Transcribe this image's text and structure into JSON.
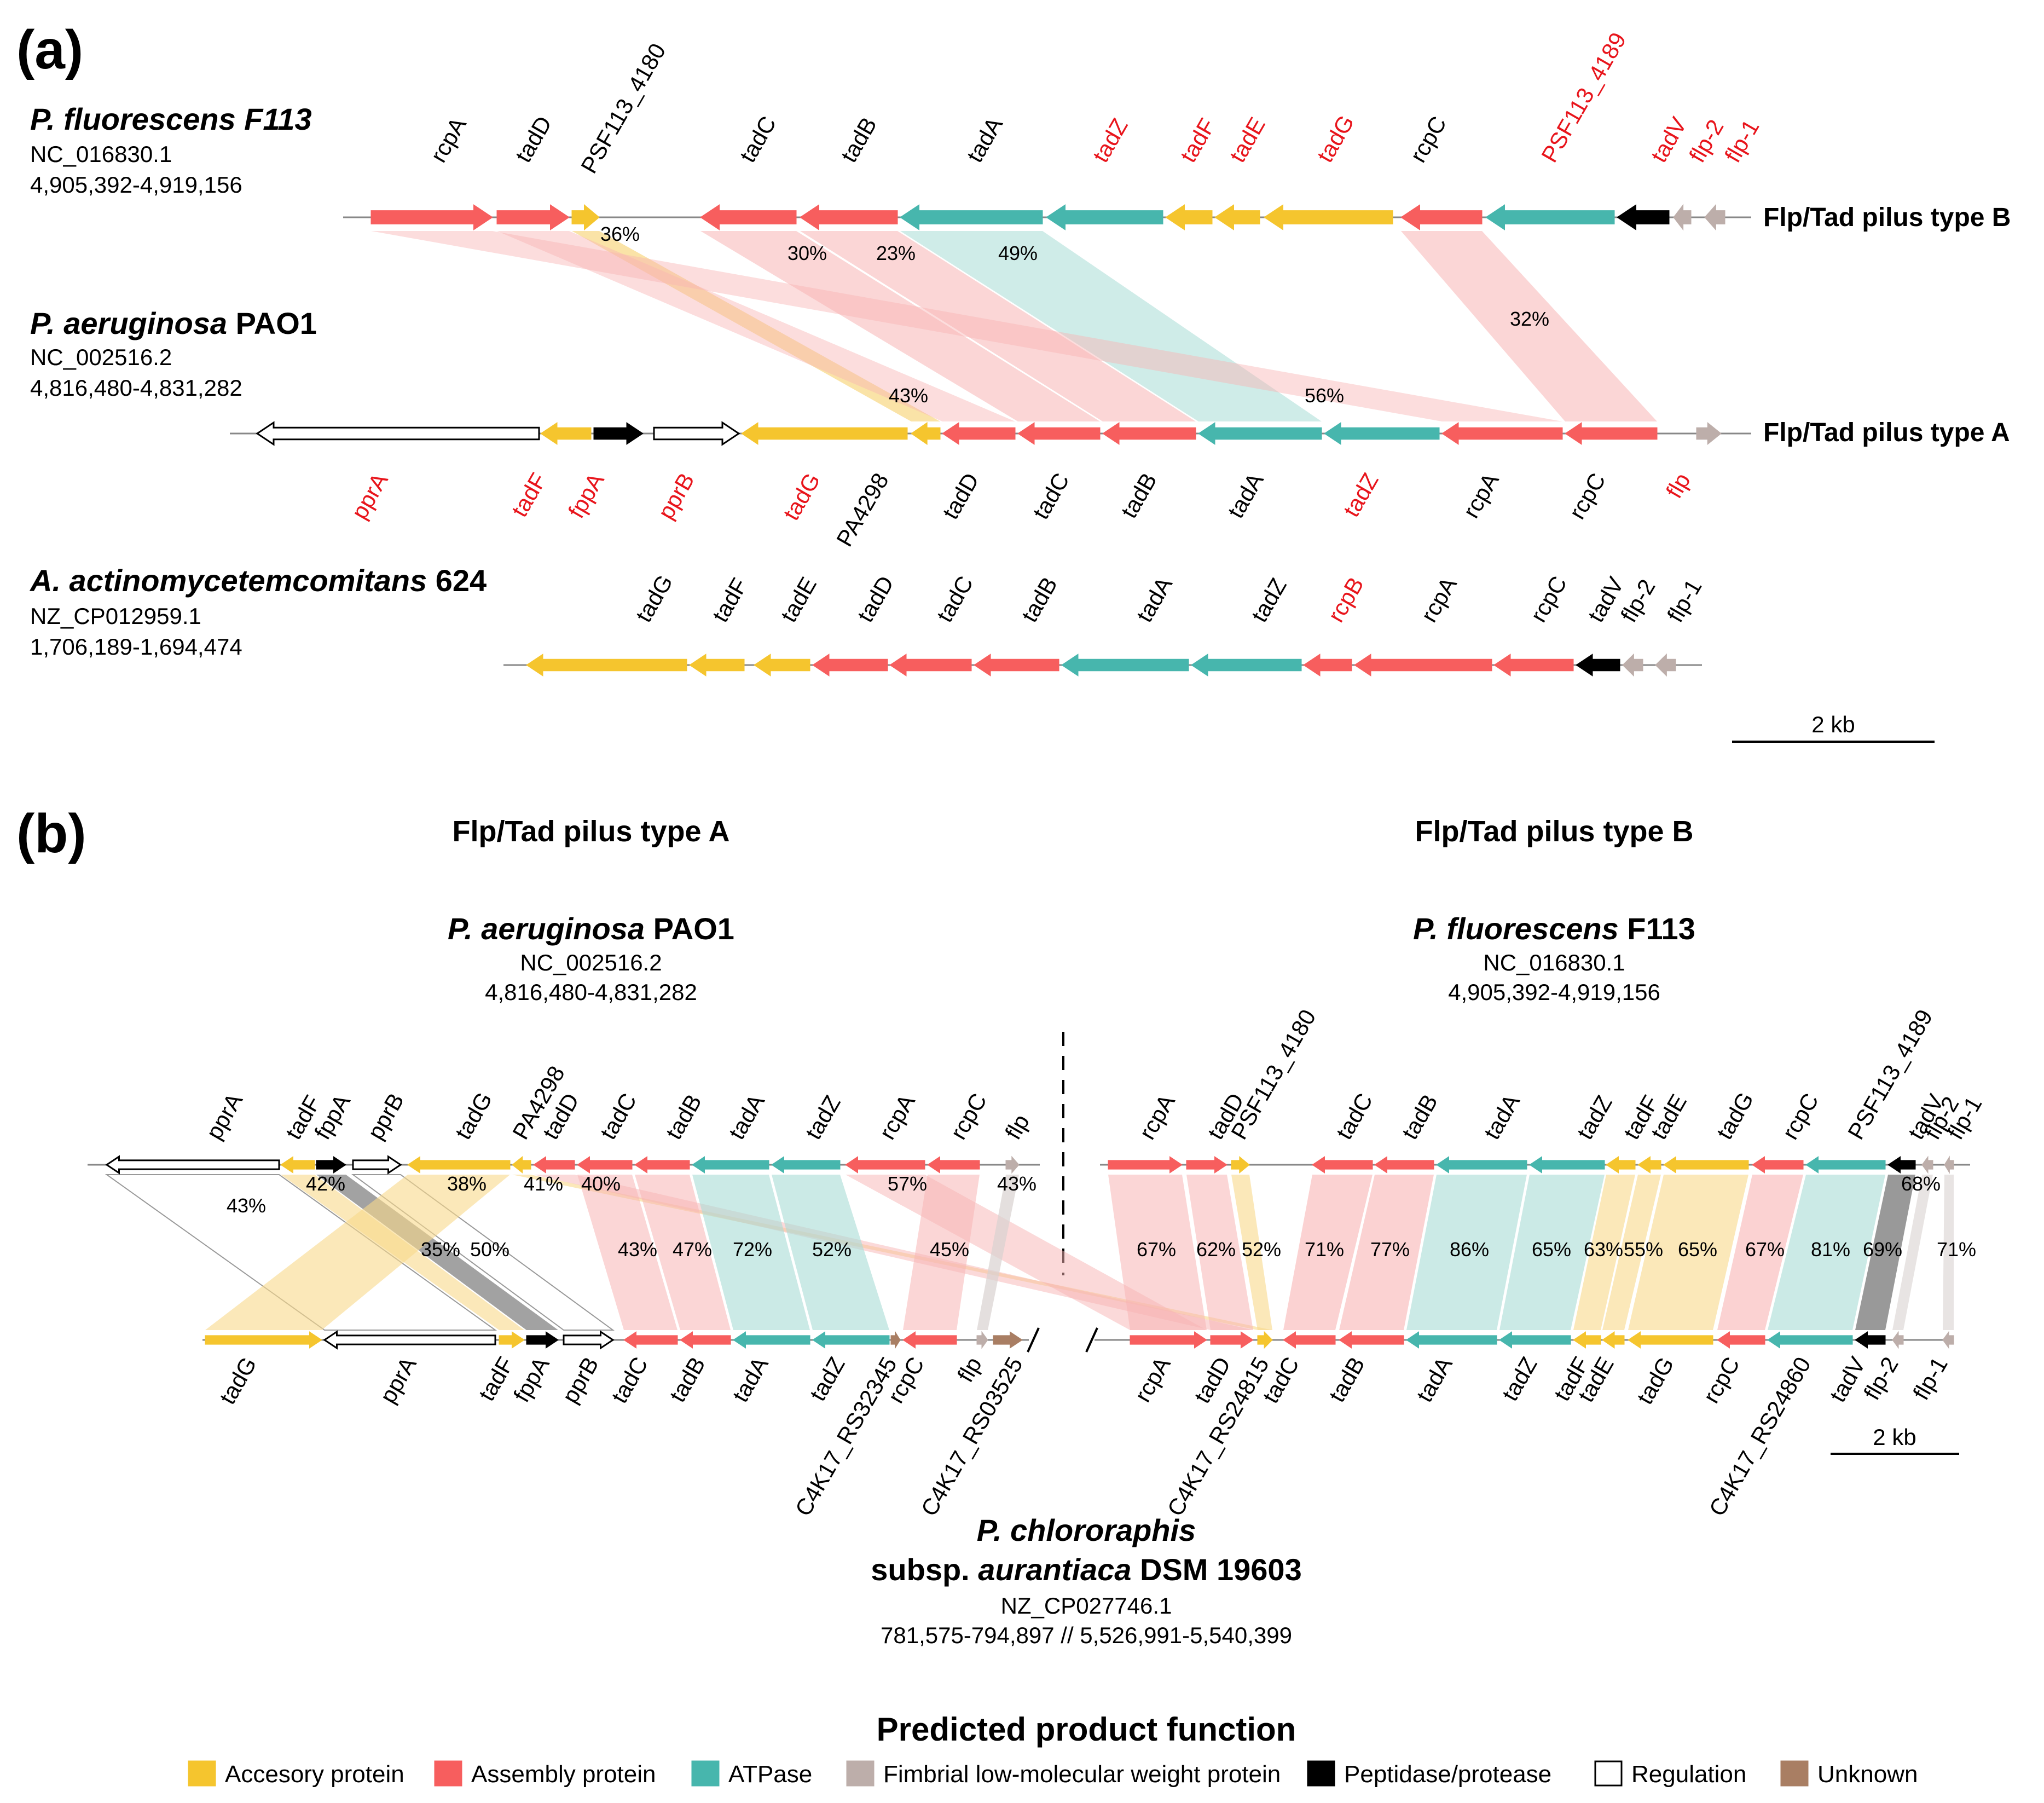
{
  "colors": {
    "accessory": "#F5C52E",
    "assembly": "#F75E5E",
    "atpase": "#47B6AD",
    "fimbrial": "#BDAEAA",
    "peptidase": "#000000",
    "regulation": "#FFFFFF",
    "unknown": "#A97E63",
    "label_black": "#000000",
    "label_red": "#E8141B"
  },
  "panel_a": {
    "label": "(a)",
    "scale_label": "2 kb",
    "genomes": [
      {
        "key": "fluo",
        "name_italic": "P. fluorescens F113",
        "name_rest": "",
        "accession": "NC_016830.1",
        "coords": "4,905,392-4,919,156",
        "type_label": "Flp/Tad pilus type B",
        "genes": [
          {
            "name": "rcpA",
            "func": "assembly",
            "dir": "R",
            "red": false
          },
          {
            "name": "tadD",
            "func": "assembly",
            "dir": "R",
            "red": false
          },
          {
            "name": "PSF113_4180",
            "func": "accessory",
            "dir": "R",
            "red": false
          },
          {
            "name": "tadC",
            "func": "assembly",
            "dir": "L",
            "red": false
          },
          {
            "name": "tadB",
            "func": "assembly",
            "dir": "L",
            "red": false
          },
          {
            "name": "tadA",
            "func": "atpase",
            "dir": "L",
            "red": false
          },
          {
            "name": "tadZ",
            "func": "atpase",
            "dir": "L",
            "red": true
          },
          {
            "name": "tadF",
            "func": "accessory",
            "dir": "L",
            "red": true
          },
          {
            "name": "tadE",
            "func": "accessory",
            "dir": "L",
            "red": true
          },
          {
            "name": "tadG",
            "func": "accessory",
            "dir": "L",
            "red": true
          },
          {
            "name": "rcpC",
            "func": "assembly",
            "dir": "L",
            "red": false
          },
          {
            "name": "PSF113_4189",
            "func": "atpase",
            "dir": "L",
            "red": true
          },
          {
            "name": "tadV",
            "func": "peptidase",
            "dir": "L",
            "red": true
          },
          {
            "name": "flp-2",
            "func": "fimbrial",
            "dir": "L",
            "red": true
          },
          {
            "name": "flp-1",
            "func": "fimbrial",
            "dir": "L",
            "red": true
          }
        ]
      },
      {
        "key": "aeru",
        "name_italic": "P. aeruginosa",
        "name_rest": " PAO1",
        "accession": "NC_002516.2",
        "coords": "4,816,480-4,831,282",
        "type_label": "Flp/Tad pilus type A",
        "genes": [
          {
            "name": "pprA",
            "func": "regulation",
            "dir": "L",
            "red": true
          },
          {
            "name": "tadF",
            "func": "accessory",
            "dir": "L",
            "red": true
          },
          {
            "name": "fppA",
            "func": "peptidase",
            "dir": "R",
            "red": true
          },
          {
            "name": "pprB",
            "func": "regulation",
            "dir": "R",
            "red": true
          },
          {
            "name": "tadG",
            "func": "accessory",
            "dir": "L",
            "red": true
          },
          {
            "name": "PA4298",
            "func": "accessory",
            "dir": "L",
            "red": false
          },
          {
            "name": "tadD",
            "func": "assembly",
            "dir": "L",
            "red": false
          },
          {
            "name": "tadC",
            "func": "assembly",
            "dir": "L",
            "red": false
          },
          {
            "name": "tadB",
            "func": "assembly",
            "dir": "L",
            "red": false
          },
          {
            "name": "tadA",
            "func": "atpase",
            "dir": "L",
            "red": false
          },
          {
            "name": "tadZ",
            "func": "atpase",
            "dir": "L",
            "red": true
          },
          {
            "name": "rcpA",
            "func": "assembly",
            "dir": "L",
            "red": false
          },
          {
            "name": "rcpC",
            "func": "assembly",
            "dir": "L",
            "red": false
          },
          {
            "name": "flp",
            "func": "fimbrial",
            "dir": "R",
            "red": true
          }
        ]
      },
      {
        "key": "acti",
        "name_italic": "A. actinomycetemcomitans",
        "name_rest": " 624",
        "accession": "NZ_CP012959.1",
        "coords": "1,706,189-1,694,474",
        "type_label": "",
        "genes": [
          {
            "name": "tadG",
            "func": "accessory",
            "dir": "L",
            "red": false
          },
          {
            "name": "tadF",
            "func": "accessory",
            "dir": "L",
            "red": false
          },
          {
            "name": "tadE",
            "func": "accessory",
            "dir": "L",
            "red": false
          },
          {
            "name": "tadD",
            "func": "assembly",
            "dir": "L",
            "red": false
          },
          {
            "name": "tadC",
            "func": "assembly",
            "dir": "L",
            "red": false
          },
          {
            "name": "tadB",
            "func": "assembly",
            "dir": "L",
            "red": false
          },
          {
            "name": "tadA",
            "func": "atpase",
            "dir": "L",
            "red": false
          },
          {
            "name": "tadZ",
            "func": "atpase",
            "dir": "L",
            "red": false
          },
          {
            "name": "rcpB",
            "func": "assembly",
            "dir": "L",
            "red": true
          },
          {
            "name": "rcpA",
            "func": "assembly",
            "dir": "L",
            "red": false
          },
          {
            "name": "rcpC",
            "func": "assembly",
            "dir": "L",
            "red": false
          },
          {
            "name": "tadV",
            "func": "peptidase",
            "dir": "L",
            "red": false
          },
          {
            "name": "flp-2",
            "func": "fimbrial",
            "dir": "L",
            "red": false
          },
          {
            "name": "flp-1",
            "func": "fimbrial",
            "dir": "L",
            "red": false
          }
        ]
      }
    ],
    "links": [
      {
        "pct": "36%",
        "func": "accessory"
      },
      {
        "pct": "30%",
        "func": "assembly"
      },
      {
        "pct": "23%",
        "func": "assembly"
      },
      {
        "pct": "49%",
        "func": "atpase"
      },
      {
        "pct": "32%",
        "func": "assembly"
      },
      {
        "pct": "43%",
        "func": "assembly"
      },
      {
        "pct": "56%",
        "func": "assembly"
      }
    ]
  },
  "panel_b": {
    "label": "(b)",
    "scale_label": "2 kb",
    "type_a": "Flp/Tad pilus type A",
    "type_b": "Flp/Tad pilus type B",
    "aeru": {
      "name_italic": "P. aeruginosa",
      "name_rest": " PAO1",
      "accession": "NC_002516.2",
      "coords": "4,816,480-4,831,282"
    },
    "fluo": {
      "name_italic": "P. fluorescens",
      "name_rest": " F113",
      "accession": "NC_016830.1",
      "coords": "4,905,392-4,919,156"
    },
    "chlo": {
      "name_italic": "P. chlororaphis",
      "line2_pre": "subsp. ",
      "line2_italic": "aurantiaca",
      "line2_rest": " DSM 19603",
      "accession": "NZ_CP027746.1",
      "coords": "781,575-794,897 // 5,526,991-5,540,399"
    },
    "top_left_genes": [
      "pprA",
      "tadF",
      "fppA",
      "pprB",
      "tadG",
      "PA4298",
      "tadD",
      "tadC",
      "tadB",
      "tadA",
      "tadZ",
      "rcpA",
      "rcpC",
      "flp"
    ],
    "top_right_genes": [
      "rcpA",
      "tadD",
      "PSF113_4180",
      "tadC",
      "tadB",
      "tadA",
      "tadZ",
      "tadF",
      "tadE",
      "tadG",
      "rcpC",
      "PSF113_4189",
      "tadV",
      "flp-2",
      "flp-1"
    ],
    "bottom_left_genes": [
      "tadG",
      "pprA",
      "tadF",
      "fppA",
      "pprB",
      "tadC",
      "tadB",
      "tadA",
      "tadZ",
      "C4K17_RS32345",
      "rcpC",
      "flp",
      "C4K17_RS03525"
    ],
    "bottom_right_genes": [
      "rcpA",
      "tadD",
      "C4K17_RS24815",
      "tadC",
      "tadB",
      "tadA",
      "tadZ",
      "tadF",
      "tadE",
      "tadG",
      "rcpC",
      "C4K17_RS24860",
      "tadV",
      "flp-2",
      "flp-1"
    ],
    "left_pcts": [
      "43%",
      "42%",
      "35%",
      "50%",
      "38%",
      "41%",
      "40%",
      "43%",
      "47%",
      "72%",
      "52%",
      "45%",
      "57%",
      "43%"
    ],
    "right_pcts": [
      "67%",
      "62%",
      "52%",
      "71%",
      "77%",
      "86%",
      "65%",
      "63%",
      "55%",
      "65%",
      "67%",
      "81%",
      "69%",
      "68%",
      "71%"
    ]
  },
  "legend": {
    "title": "Predicted product function",
    "items": [
      {
        "label": "Accesory protein",
        "func": "accessory"
      },
      {
        "label": "Assembly protein",
        "func": "assembly"
      },
      {
        "label": "ATPase",
        "func": "atpase"
      },
      {
        "label": "Fimbrial low-molecular weight protein",
        "func": "fimbrial"
      },
      {
        "label": "Peptidase/protease",
        "func": "peptidase"
      },
      {
        "label": "Regulation",
        "func": "regulation"
      },
      {
        "label": "Unknown",
        "func": "unknown"
      }
    ]
  }
}
